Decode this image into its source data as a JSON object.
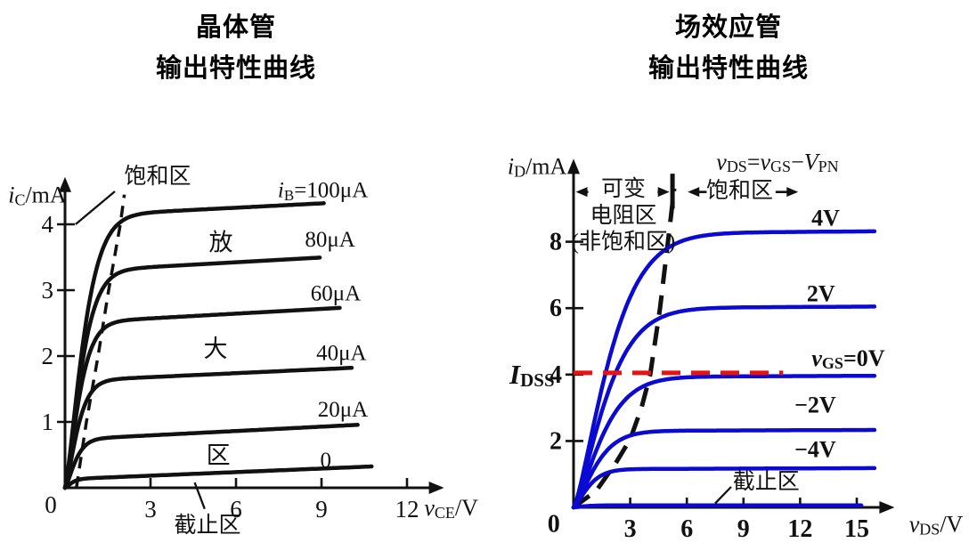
{
  "titles": {
    "left": {
      "line1": "晶体管",
      "line2": "输出特性曲线"
    },
    "right": {
      "line1": "场效应管",
      "line2": "输出特性曲线"
    }
  },
  "colors": {
    "curve_black": "#111111",
    "curve_blue": "#0a0ad2",
    "idss_red": "#e81212"
  },
  "chart_data": [
    {
      "type": "line",
      "name": "bjt-output-characteristics",
      "title": "晶体管输出特性曲线",
      "xlabel": "*v*~CE~/V",
      "ylabel": "*i*~C~/mA",
      "xlim": [
        0,
        13.3
      ],
      "ylim": [
        0,
        4.72
      ],
      "x_ticks": [
        3,
        6,
        9,
        12
      ],
      "y_ticks": [
        1,
        2,
        3,
        4
      ],
      "origin_label": "0",
      "origin_pos": [
        -0.5,
        -0.26
      ],
      "xlabel_pos": [
        13.55,
        -0.3
      ],
      "ylabel_pos": [
        -0.97,
        4.45
      ],
      "tick_size": 27,
      "tick_bold": false,
      "label_size": 26,
      "series_label_size": 25,
      "curve_color": "#111111",
      "grid": false,
      "legend": "labels-on-curves",
      "series": [
        {
          "id": "ib-100uA",
          "name": "*i*~B~=100μA",
          "plateau": 4.12,
          "knee": 1.7,
          "slope": 0.022,
          "v_end": 9.15,
          "label_pos": [
            9.05,
            4.52
          ]
        },
        {
          "id": "ib-80uA",
          "name": "80μA",
          "plateau": 3.28,
          "knee": 1.5,
          "slope": 0.024,
          "v_end": 9.0,
          "label_pos": [
            9.3,
            3.77
          ]
        },
        {
          "id": "ib-60uA",
          "name": "60μA",
          "plateau": 2.5,
          "knee": 1.3,
          "slope": 0.024,
          "v_end": 9.7,
          "label_pos": [
            9.5,
            2.95
          ]
        },
        {
          "id": "ib-40uA",
          "name": "40μA",
          "plateau": 1.62,
          "knee": 1.15,
          "slope": 0.02,
          "v_end": 10.1,
          "label_pos": [
            9.7,
            2.05
          ]
        },
        {
          "id": "ib-20uA",
          "name": "20μA",
          "plateau": 0.73,
          "knee": 0.95,
          "slope": 0.022,
          "v_end": 10.3,
          "label_pos": [
            9.75,
            1.19
          ]
        },
        {
          "id": "ib-0",
          "name": "0",
          "plateau": 0.13,
          "knee": 0.6,
          "slope": 0.018,
          "v_end": 10.8,
          "label_pos": [
            9.15,
            0.42
          ]
        }
      ],
      "boundary": {
        "name": "saturation-boundary-dashed",
        "style": "dashed",
        "width": 3.5,
        "dash": "13 9",
        "color": "#111111",
        "points": [
          [
            0.4,
            0
          ],
          [
            0.75,
            1
          ],
          [
            1.16,
            2
          ],
          [
            1.53,
            3
          ],
          [
            1.94,
            4
          ],
          [
            2.08,
            4.45
          ]
        ]
      },
      "annotations": [
        {
          "type": "text",
          "name": "saturation-region-label",
          "text": "饱和区",
          "pos": [
            3.25,
            4.73
          ],
          "size": 25
        },
        {
          "type": "line",
          "name": "saturation-pointer",
          "from": [
            0.37,
            4.0
          ],
          "to": [
            1.75,
            4.5
          ]
        },
        {
          "type": "text",
          "name": "amplification-char-1",
          "text": "放",
          "pos": [
            5.47,
            3.72
          ],
          "size": 27
        },
        {
          "type": "text",
          "name": "amplification-char-2",
          "text": "大",
          "pos": [
            5.28,
            2.11
          ],
          "size": 27
        },
        {
          "type": "text",
          "name": "amplification-char-3",
          "text": "区",
          "pos": [
            5.38,
            0.49
          ],
          "size": 27
        },
        {
          "type": "text",
          "name": "cutoff-region-label",
          "text": "截止区",
          "pos": [
            5.0,
            -0.57
          ],
          "size": 25
        },
        {
          "type": "line",
          "name": "cutoff-pointer",
          "from": [
            4.55,
            0.08
          ],
          "to": [
            4.9,
            -0.32
          ]
        }
      ]
    },
    {
      "type": "line",
      "name": "fet-output-characteristics",
      "title": "场效应管输出特性曲线",
      "xlabel": "*v*~DS~/V",
      "ylabel": "*i*~D~/mA",
      "xlim": [
        0,
        17.0
      ],
      "ylim": [
        0,
        10.5
      ],
      "x_ticks": [
        3,
        6,
        9,
        12,
        15
      ],
      "y_ticks": [
        2,
        4,
        6,
        8
      ],
      "origin_label": "0",
      "origin_pos": [
        -1.05,
        -0.5
      ],
      "xlabel_pos": [
        19.2,
        -0.5
      ],
      "ylabel_pos": [
        -1.93,
        10.28
      ],
      "tick_size": 28,
      "tick_bold": true,
      "label_size": 26,
      "series_label_size": 26,
      "curve_color": "#0a0ad2",
      "grid": false,
      "legend": "labels-on-curves",
      "idss_value": 4,
      "series": [
        {
          "id": "vgs-4v",
          "name": "4V",
          "bold": true,
          "plateau": 8.25,
          "knee": 5.0,
          "slope": 0.004,
          "v_end": 16.0,
          "label_pos": [
            13.35,
            8.72
          ]
        },
        {
          "id": "vgs-2v",
          "name": "2V",
          "bold": true,
          "plateau": 6.0,
          "knee": 4.5,
          "slope": 0.003,
          "v_end": 16.0,
          "label_pos": [
            13.1,
            6.45
          ]
        },
        {
          "id": "vgs-0v",
          "name": "*v*~GS~=0V",
          "bold": true,
          "plateau": 3.93,
          "knee": 4.0,
          "slope": 0.002,
          "v_end": 16.0,
          "label_pos": [
            14.55,
            4.5
          ]
        },
        {
          "id": "vgs-neg2v",
          "name": "−2V",
          "bold": true,
          "plateau": 2.3,
          "knee": 3.1,
          "slope": 0.002,
          "v_end": 16.0,
          "label_pos": [
            12.8,
            3.1
          ]
        },
        {
          "id": "vgs-neg4v",
          "name": "−4V",
          "bold": true,
          "plateau": 1.15,
          "knee": 2.1,
          "slope": 0.002,
          "v_end": 16.0,
          "label_pos": [
            12.8,
            1.76
          ]
        },
        {
          "id": "vgs-cutoff",
          "name": "",
          "plateau": 0.06,
          "knee": 1.5,
          "slope": 0,
          "v_end": 15.3
        }
      ],
      "boundary": {
        "name": "pinchoff-boundary-dashed",
        "style": "dashed",
        "width": 5,
        "dash": "22 13",
        "color": "#111111",
        "points": [
          [
            0,
            0
          ],
          [
            1.2,
            0.5
          ],
          [
            2.2,
            1.3
          ],
          [
            3.0,
            2.05
          ],
          [
            3.6,
            3.0
          ],
          [
            4.06,
            4.0
          ],
          [
            4.58,
            6.0
          ],
          [
            5.0,
            8.0
          ],
          [
            5.33,
            9.6
          ]
        ]
      },
      "annotations": [
        {
          "type": "text",
          "name": "boundary-equation",
          "text": "*v*~DS~=*v*~GS~−*V*~PN~",
          "pos": [
            10.8,
            10.42
          ],
          "size": 26
        },
        {
          "type": "text",
          "name": "variable-resistance-line1",
          "text": "可变",
          "pos": [
            2.64,
            9.6
          ],
          "size": 25
        },
        {
          "type": "text",
          "name": "variable-resistance-line2",
          "text": "电阻区",
          "pos": [
            2.64,
            8.8
          ],
          "size": 25
        },
        {
          "type": "text",
          "name": "variable-resistance-line3",
          "text": "(非饱和区)",
          "pos": [
            2.64,
            8.0
          ],
          "size": 25
        },
        {
          "type": "text",
          "name": "saturation-region-label",
          "text": "饱和区",
          "pos": [
            8.8,
            9.55
          ],
          "size": 25
        },
        {
          "type": "arrow",
          "name": "range-arrow-left-in",
          "from": [
            0.78,
            9.5
          ],
          "to": [
            0.12,
            9.5
          ]
        },
        {
          "type": "arrow",
          "name": "range-arrow-left-out",
          "from": [
            4.45,
            9.5
          ],
          "to": [
            5.08,
            9.5
          ]
        },
        {
          "type": "arrow",
          "name": "range-arrow-right-in",
          "from": [
            7.05,
            9.5
          ],
          "to": [
            6.05,
            9.5
          ]
        },
        {
          "type": "arrow",
          "name": "range-arrow-right-out",
          "from": [
            10.7,
            9.5
          ],
          "to": [
            11.9,
            9.5
          ]
        },
        {
          "type": "vdash",
          "name": "boundary-top-dash",
          "v": 5.24,
          "i_from": 9.0,
          "i_to": 10.05
        },
        {
          "type": "dashline",
          "name": "idss-dashed-line",
          "from": [
            0,
            4.05
          ],
          "to": [
            11.1,
            4.05
          ],
          "color": "#e81212",
          "width": 5,
          "dash": "21 12"
        },
        {
          "type": "text",
          "name": "idss-label",
          "text": "*I*~DSS~",
          "pos": [
            -2.2,
            4.02
          ],
          "size": 31,
          "bold": true
        },
        {
          "type": "text",
          "name": "cutoff-region-label",
          "text": "截止区",
          "pos": [
            10.2,
            0.78
          ],
          "size": 25
        },
        {
          "type": "line",
          "name": "cutoff-pointer",
          "from": [
            7.5,
            0.12
          ],
          "to": [
            8.35,
            0.62
          ]
        }
      ]
    }
  ]
}
